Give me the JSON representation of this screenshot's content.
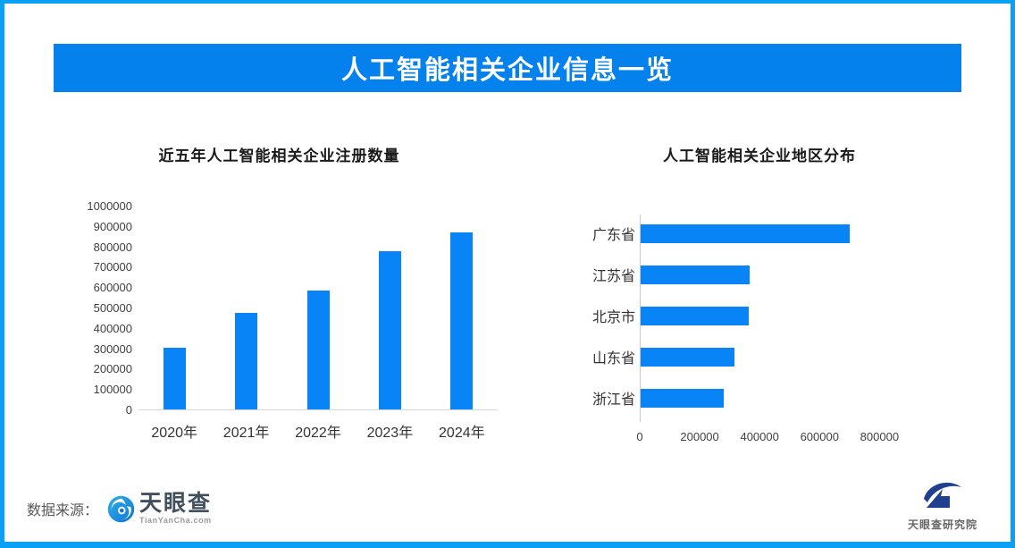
{
  "banner": {
    "title": "人工智能相关企业信息一览"
  },
  "chart_data": [
    {
      "type": "bar",
      "title": "近五年人工智能相关企业注册数量",
      "categories": [
        "2020年",
        "2021年",
        "2022年",
        "2023年",
        "2024年"
      ],
      "values": [
        305000,
        477000,
        586000,
        779000,
        874000
      ],
      "ylim": [
        0,
        1000000
      ],
      "yticks": [
        "1000000",
        "900000",
        "800000",
        "700000",
        "600000",
        "500000",
        "400000",
        "300000",
        "200000",
        "100000",
        "0"
      ],
      "bar_color": "#0884f6",
      "grid": false,
      "legend": false
    },
    {
      "type": "bar-horizontal",
      "title": "人工智能相关企业地区分布",
      "categories": [
        "广东省",
        "江苏省",
        "北京市",
        "山东省",
        "浙江省"
      ],
      "values": [
        700000,
        366000,
        364000,
        317000,
        280000
      ],
      "xlim": [
        0,
        1100000
      ],
      "xticks": [
        0,
        200000,
        400000,
        600000,
        800000
      ],
      "bar_color": "#0884f6",
      "grid": false,
      "legend": false
    }
  ],
  "footer": {
    "source_label": "数据来源：",
    "tyc_name": "天眼查",
    "tyc_domain": "TianYanCha.com",
    "research_name": "天眼查研究院"
  },
  "colors": {
    "border": "#0aa1f4",
    "banner_bg": "#0581ee",
    "banner_text": "#ffffff",
    "bar": "#0884f6",
    "axis_line": "#d6d6d6"
  }
}
